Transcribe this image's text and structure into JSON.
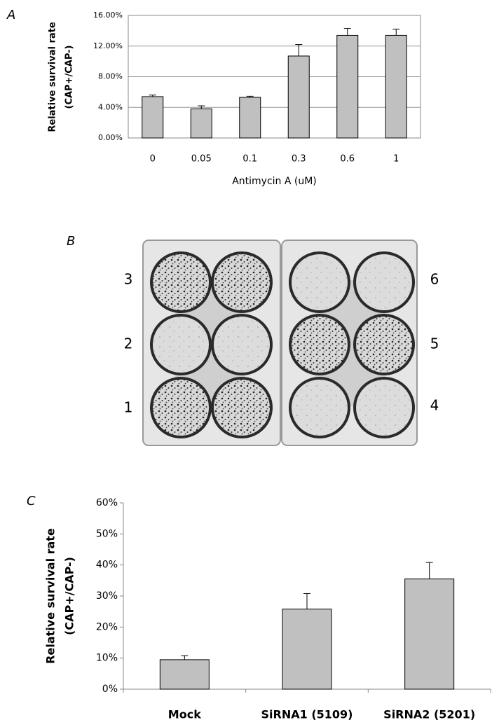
{
  "panel_labels": [
    "A",
    "B",
    "C"
  ],
  "plate_labels": [
    "1",
    "2",
    "3",
    "4",
    "5",
    "6"
  ],
  "chart_data": [
    {
      "type": "bar",
      "ylabel": [
        "Relative survival rate",
        "(CAP+/CAP-)"
      ],
      "xlabel": "Antimycin A (uM)",
      "categories": [
        "0",
        "0.05",
        "0.1",
        "0.3",
        "0.6",
        "1"
      ],
      "series": [
        {
          "color": "#c0c0c0",
          "values": [
            5.4,
            3.8,
            5.3,
            10.7,
            13.4,
            13.4
          ],
          "errors": [
            0.2,
            0.4,
            0.15,
            1.5,
            0.9,
            0.8
          ]
        }
      ],
      "ylim": [
        0,
        16
      ],
      "yticks": [
        {
          "value": 0,
          "label": "0.00%"
        },
        {
          "value": 4,
          "label": "4.00%"
        },
        {
          "value": 8,
          "label": "8.00%"
        },
        {
          "value": 12,
          "label": "12.00%"
        },
        {
          "value": 16,
          "label": "16.00%"
        }
      ],
      "grid": true,
      "frame": true
    },
    {
      "type": "bar",
      "ylabel": [
        "Relative survival rate",
        "(CAP+/CAP-)"
      ],
      "categories": [
        "Mock",
        "SiRNA1 (5109)",
        "SiRNA2 (5201)"
      ],
      "series": [
        {
          "color": "#c0c0c0",
          "values": [
            9.5,
            25.8,
            35.5
          ],
          "errors": [
            1.3,
            5.0,
            5.3
          ]
        }
      ],
      "ylim": [
        0,
        60
      ],
      "yticks": [
        {
          "value": 0,
          "label": "0%"
        },
        {
          "value": 10,
          "label": "10%"
        },
        {
          "value": 20,
          "label": "20%"
        },
        {
          "value": 30,
          "label": "30%"
        },
        {
          "value": 40,
          "label": "40%"
        },
        {
          "value": 50,
          "label": "50%"
        },
        {
          "value": 60,
          "label": "60%"
        }
      ],
      "grid": false,
      "frame": false
    }
  ]
}
